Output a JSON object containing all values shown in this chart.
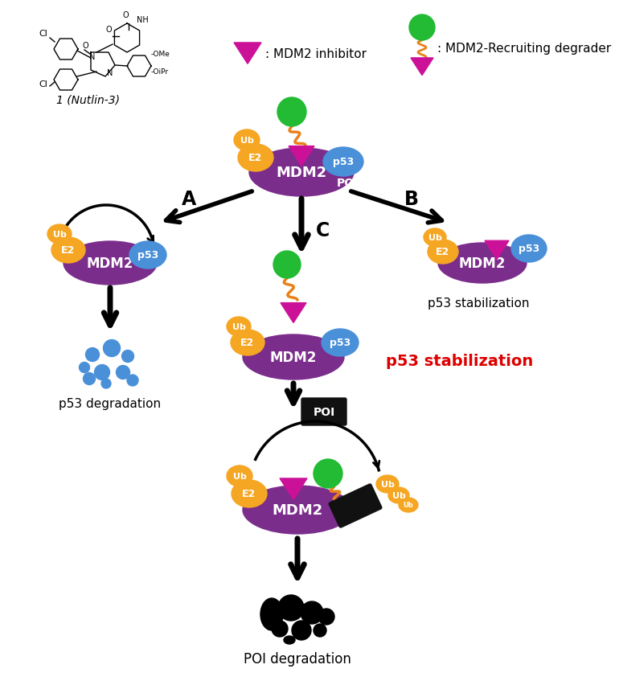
{
  "colors": {
    "mdm2": "#7B2D8B",
    "e2": "#F5A623",
    "ub": "#F5A623",
    "p53": "#4A90D9",
    "green_ball": "#22BB33",
    "inhibitor": "#CC1199",
    "poi": "#111111",
    "white": "#FFFFFF",
    "red_text": "#DD0000",
    "black": "#000000",
    "linker": "#E8821A"
  },
  "legend_inhibitor_text": ": MDM2 inhibitor",
  "legend_degrader_text": ": MDM2-Recruiting degrader",
  "labels": {
    "p53_degradation": "p53 degradation",
    "p53_stabilization_right": "p53 stabilization",
    "p53_stabilization_center": "p53 stabilization",
    "poi_degradation": "POI degradation",
    "nutlin": "1 (Nutlin-3)",
    "A": "A",
    "B": "B",
    "C": "C",
    "POI": "POI",
    "MDM2": "MDM2",
    "E2": "E2",
    "Ub": "Ub",
    "p53": "p53"
  }
}
